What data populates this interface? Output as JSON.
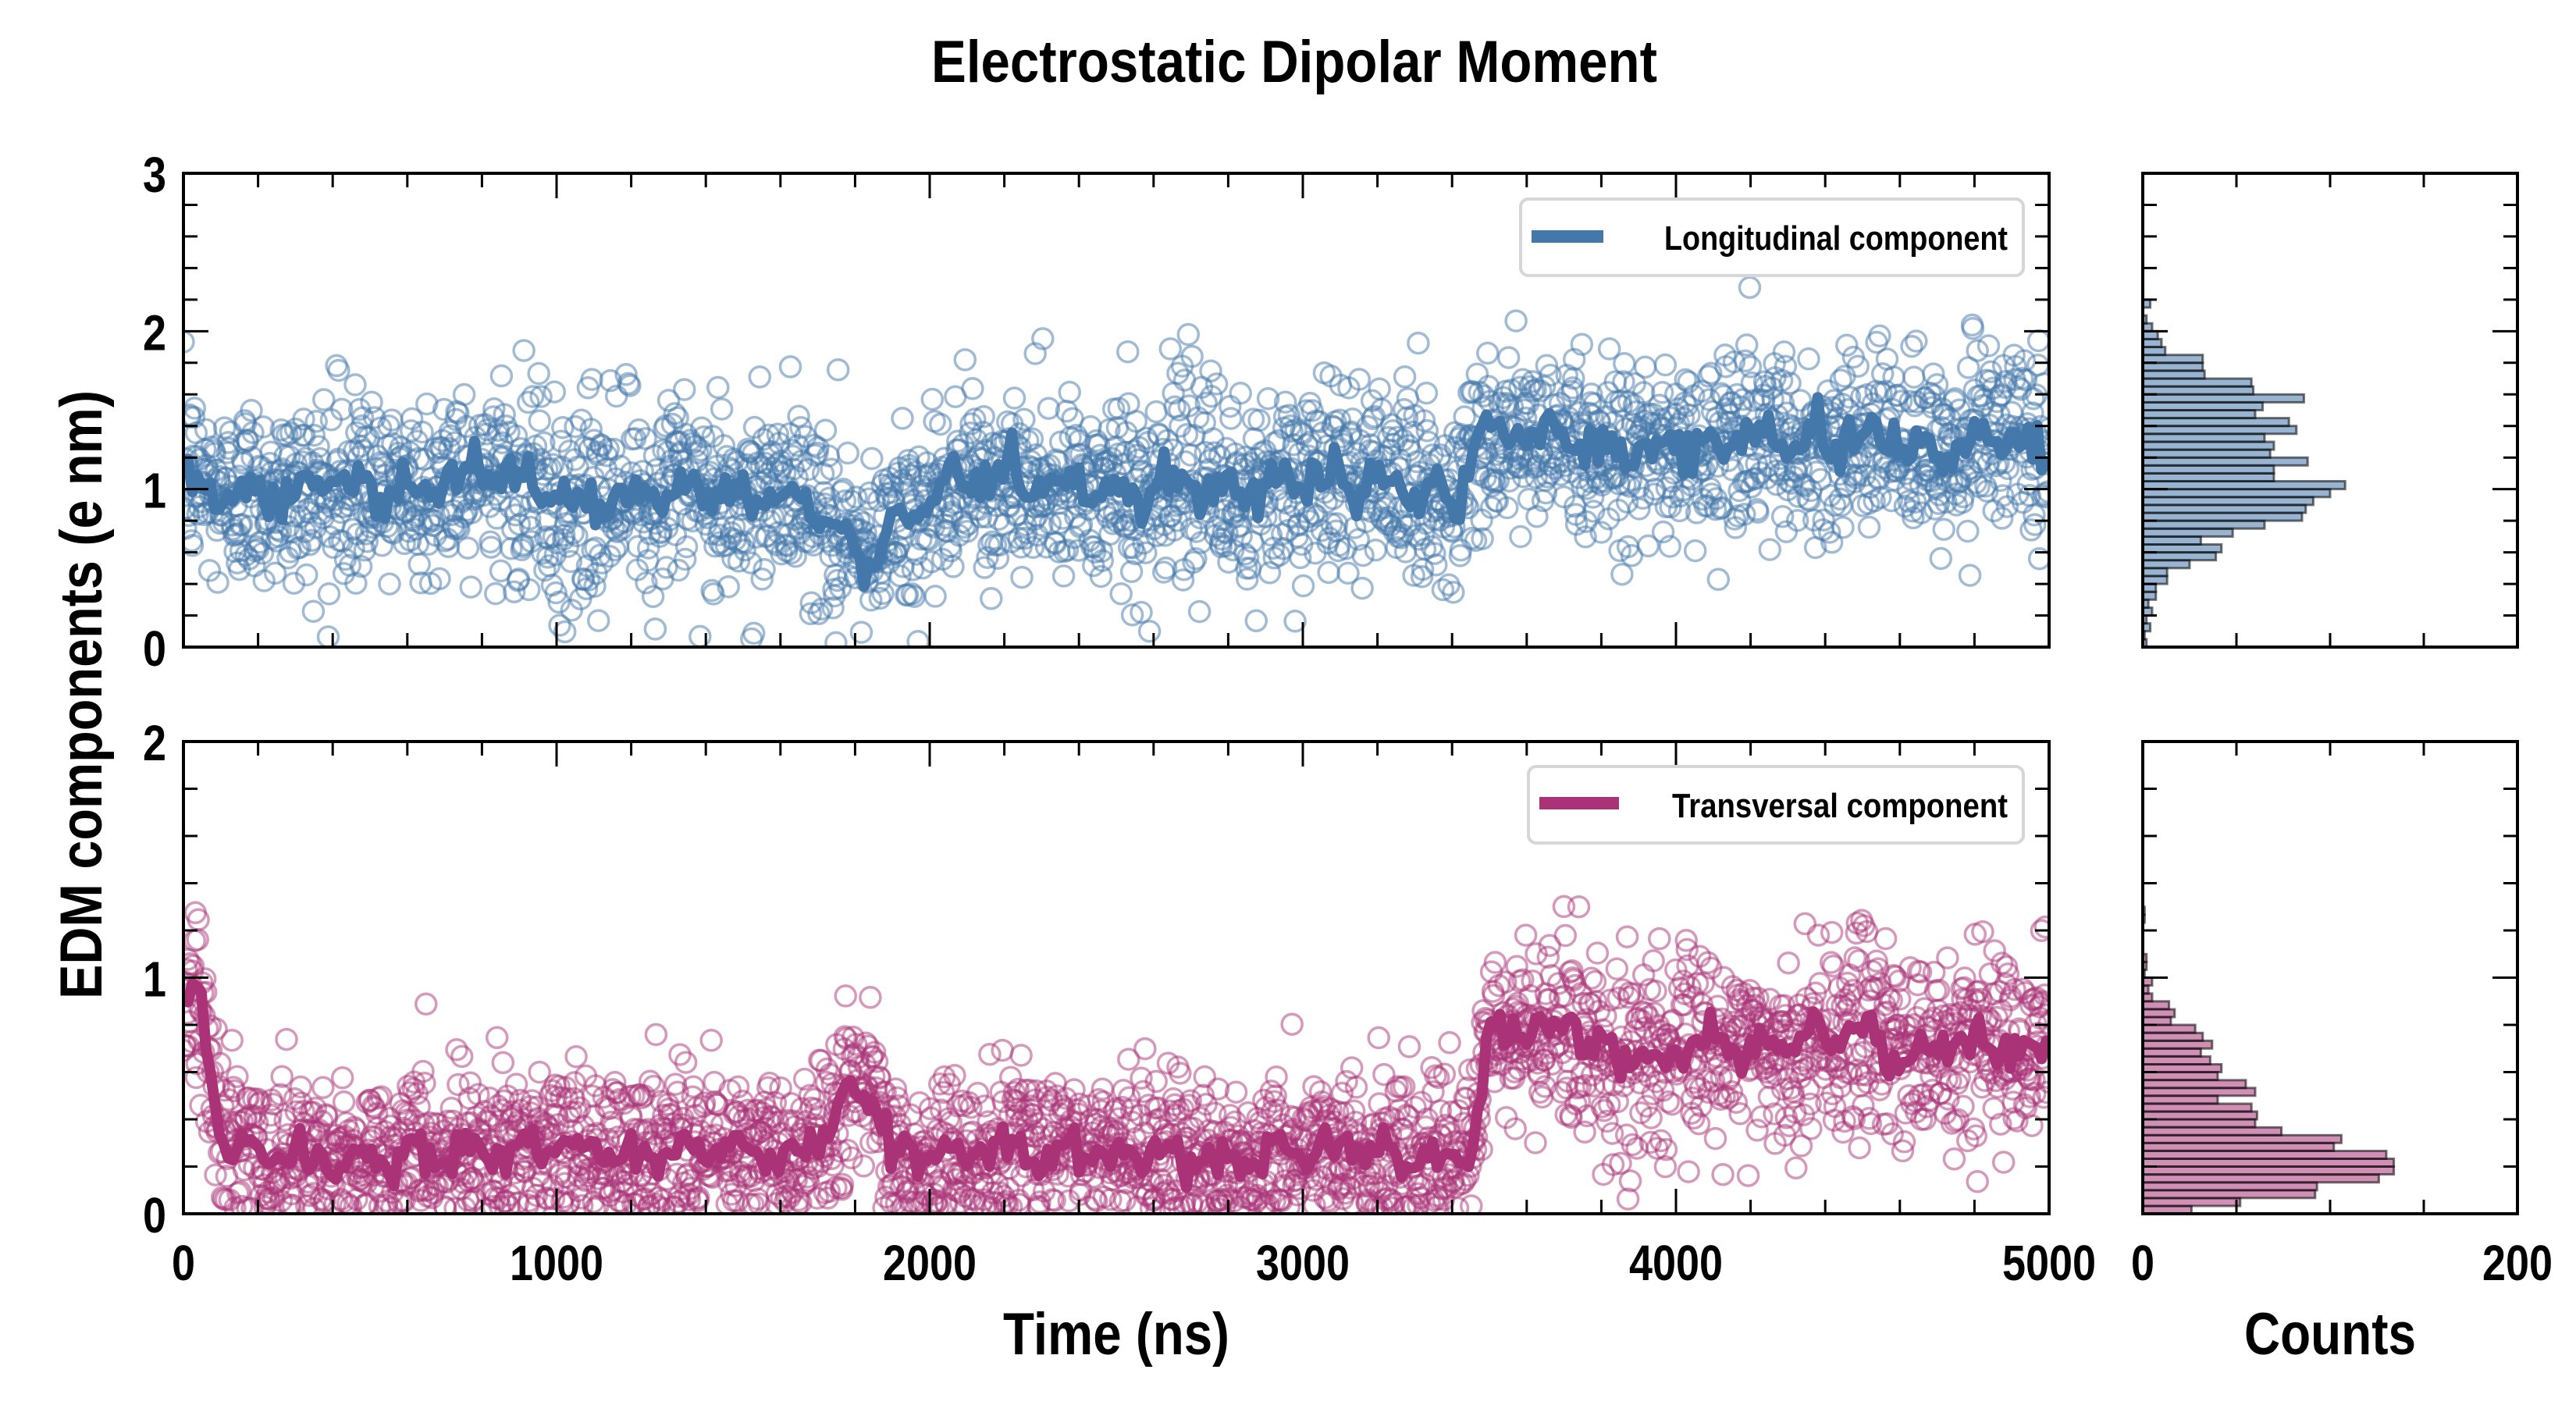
{
  "chart_data": [
    {
      "type": "scatter",
      "panel": "top-main",
      "title": "Electrostatic Dipolar Moment",
      "xlabel": "Time (ns)",
      "ylabel": "EDM components (e nm)",
      "xlim": [
        0,
        5000
      ],
      "ylim": [
        0,
        3
      ],
      "x_ticks": [
        "0",
        "1000",
        "2000",
        "3000",
        "4000",
        "5000"
      ],
      "y_ticks": [
        "0",
        "1",
        "2",
        "3"
      ],
      "legend": {
        "label": "Longitudinal component",
        "placement": "top-right"
      },
      "color": "#4477aa",
      "series": [
        {
          "name": "Longitudinal component (running average)",
          "x": [
            0,
            100,
            200,
            300,
            400,
            500,
            600,
            700,
            800,
            900,
            1000,
            1100,
            1200,
            1300,
            1400,
            1500,
            1600,
            1700,
            1800,
            1900,
            2000,
            2100,
            2200,
            2300,
            2400,
            2500,
            2600,
            2700,
            2800,
            2900,
            3000,
            3100,
            3200,
            3300,
            3400,
            3500,
            3600,
            3700,
            3800,
            3900,
            4000,
            4100,
            4200,
            4300,
            4400,
            4500,
            4600,
            4700,
            4800,
            4900,
            5000
          ],
          "y": [
            1.1,
            0.95,
            1.0,
            0.95,
            1.05,
            0.95,
            1.0,
            1.05,
            1.15,
            1.05,
            0.95,
            0.9,
            0.95,
            1.0,
            1.0,
            0.95,
            0.95,
            0.9,
            0.55,
            0.75,
            0.95,
            1.0,
            1.05,
            1.0,
            1.0,
            0.95,
            1.0,
            1.05,
            0.95,
            1.0,
            1.05,
            1.1,
            1.05,
            1.0,
            0.95,
            1.4,
            1.3,
            1.35,
            1.25,
            1.2,
            1.3,
            1.25,
            1.35,
            1.3,
            1.25,
            1.35,
            1.3,
            1.2,
            1.3,
            1.35,
            1.2
          ]
        },
        {
          "name": "Longitudinal component (samples)",
          "n_points": 2500,
          "spread_sd": 0.3
        }
      ]
    },
    {
      "type": "scatter",
      "panel": "bottom-main",
      "xlabel": "Time (ns)",
      "xlim": [
        0,
        5000
      ],
      "ylim": [
        0,
        2
      ],
      "x_ticks": [
        "0",
        "1000",
        "2000",
        "3000",
        "4000",
        "5000"
      ],
      "y_ticks": [
        "0",
        "1",
        "2"
      ],
      "legend": {
        "label": "Transversal component",
        "placement": "top-right"
      },
      "color": "#aa3377",
      "series": [
        {
          "name": "Transversal component (running average)",
          "x": [
            0,
            50,
            100,
            200,
            300,
            400,
            500,
            600,
            700,
            800,
            900,
            1000,
            1100,
            1200,
            1300,
            1400,
            1500,
            1600,
            1700,
            1800,
            1850,
            1900,
            2000,
            2100,
            2200,
            2300,
            2400,
            2500,
            2600,
            2700,
            2800,
            2900,
            3000,
            3100,
            3200,
            3300,
            3400,
            3450,
            3500,
            3600,
            3700,
            3800,
            3900,
            4000,
            4100,
            4200,
            4300,
            4400,
            4500,
            4600,
            4700,
            4800,
            4900,
            5000
          ],
          "y": [
            0.9,
            0.85,
            0.3,
            0.25,
            0.25,
            0.22,
            0.22,
            0.25,
            0.25,
            0.28,
            0.28,
            0.3,
            0.28,
            0.25,
            0.28,
            0.25,
            0.25,
            0.25,
            0.3,
            0.5,
            0.55,
            0.25,
            0.25,
            0.25,
            0.28,
            0.25,
            0.28,
            0.25,
            0.25,
            0.25,
            0.22,
            0.25,
            0.25,
            0.28,
            0.25,
            0.25,
            0.25,
            0.22,
            0.75,
            0.75,
            0.8,
            0.7,
            0.65,
            0.7,
            0.75,
            0.7,
            0.72,
            0.75,
            0.8,
            0.65,
            0.7,
            0.75,
            0.7,
            0.72
          ]
        },
        {
          "name": "Transversal component (samples)",
          "n_points": 2500,
          "spread_sd": 0.17
        }
      ]
    },
    {
      "type": "bar",
      "orientation": "horizontal",
      "panel": "top-histogram",
      "xlabel": "Counts",
      "xlim": [
        0,
        200
      ],
      "ylim": [
        0,
        3
      ],
      "x_ticks": [
        "0",
        "200"
      ],
      "color": "#4477aa",
      "bin_width": 0.05,
      "bin_starts": [
        0.0,
        0.05,
        0.1,
        0.15,
        0.2,
        0.25,
        0.3,
        0.35,
        0.4,
        0.45,
        0.5,
        0.55,
        0.6,
        0.65,
        0.7,
        0.75,
        0.8,
        0.85,
        0.9,
        0.95,
        1.0,
        1.05,
        1.1,
        1.15,
        1.2,
        1.25,
        1.3,
        1.35,
        1.4,
        1.45,
        1.5,
        1.55,
        1.6,
        1.65,
        1.7,
        1.75,
        1.8,
        1.85,
        1.9,
        1.95,
        2.0,
        2.05,
        2.1,
        2.15,
        2.2
      ],
      "values": [
        2,
        1,
        4,
        2,
        5,
        3,
        7,
        7,
        13,
        13,
        25,
        39,
        42,
        31,
        48,
        65,
        85,
        87,
        91,
        100,
        108,
        70,
        70,
        88,
        68,
        70,
        65,
        82,
        78,
        60,
        64,
        86,
        59,
        58,
        33,
        32,
        32,
        12,
        10,
        8,
        5,
        2,
        0,
        4,
        0
      ]
    },
    {
      "type": "bar",
      "orientation": "horizontal",
      "panel": "bottom-histogram",
      "xlabel": "Counts",
      "xlim": [
        0,
        200
      ],
      "ylim": [
        0,
        2
      ],
      "x_ticks": [
        "0",
        "200"
      ],
      "color": "#aa3377",
      "bin_width": 0.033,
      "bin_starts": [
        0.0,
        0.033,
        0.067,
        0.1,
        0.133,
        0.167,
        0.2,
        0.233,
        0.267,
        0.3,
        0.333,
        0.367,
        0.4,
        0.433,
        0.467,
        0.5,
        0.533,
        0.567,
        0.6,
        0.633,
        0.667,
        0.7,
        0.733,
        0.767,
        0.8,
        0.833,
        0.867,
        0.9,
        0.933,
        0.967,
        1.0,
        1.033,
        1.067,
        1.1,
        1.133,
        1.167,
        1.2,
        1.233,
        1.267,
        1.3,
        1.333,
        1.367,
        1.4,
        1.433,
        1.467,
        1.5
      ],
      "values": [
        26,
        52,
        92,
        93,
        126,
        134,
        134,
        130,
        102,
        106,
        74,
        60,
        61,
        58,
        40,
        60,
        55,
        40,
        42,
        36,
        31,
        37,
        32,
        28,
        15,
        17,
        14,
        5,
        3,
        5,
        1,
        2,
        2,
        0,
        0,
        0,
        0,
        1,
        1,
        0,
        0,
        0,
        0,
        0,
        0,
        0
      ]
    }
  ],
  "labels": {
    "title": "Electrostatic Dipolar Moment",
    "ylabel": "EDM components (e nm)",
    "xlabel_main": "Time (ns)",
    "xlabel_hist": "Counts",
    "legend_top": "Longitudinal component",
    "legend_bottom": "Transversal component"
  }
}
